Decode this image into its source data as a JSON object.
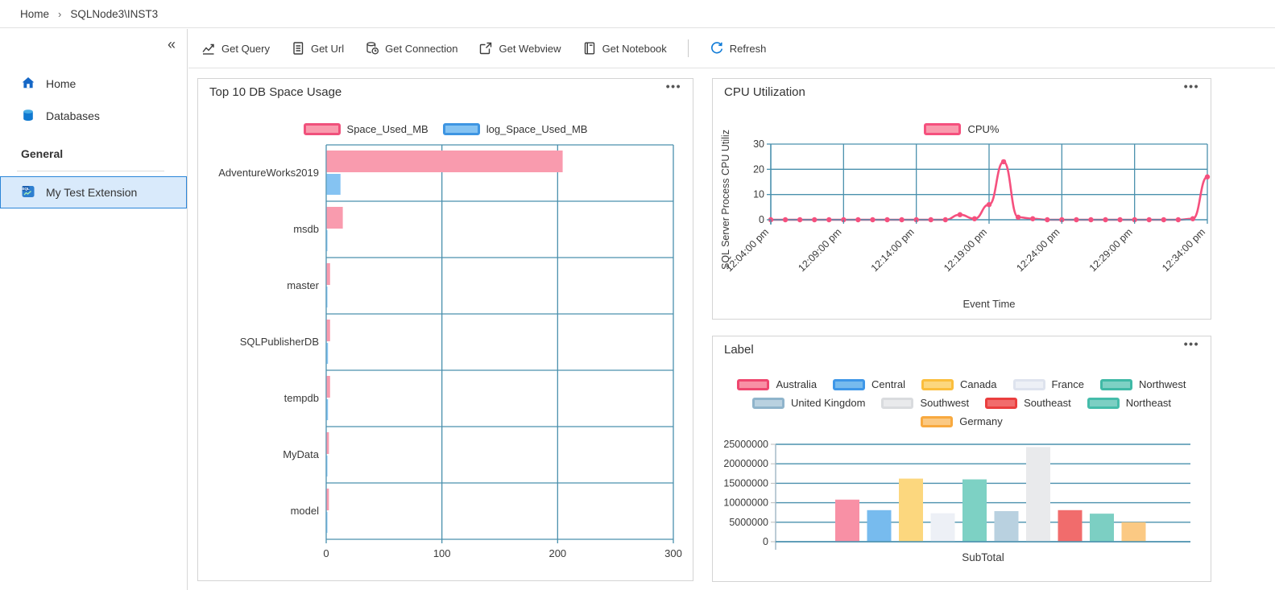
{
  "glyphs": {
    "ellipsis": "•••",
    "collapse": "«",
    "breadcrumb_separator": "›"
  },
  "breadcrumb": {
    "items": [
      "Home",
      "SQLNode3\\INST3"
    ]
  },
  "sidebar": {
    "items": [
      {
        "label": "Home",
        "icon": "home-icon"
      },
      {
        "label": "Databases",
        "icon": "database-icon"
      }
    ],
    "section": {
      "title": "General",
      "items": [
        {
          "label": "My Test Extension",
          "icon": "sql-extension-icon",
          "selected": true
        }
      ]
    }
  },
  "toolbar": {
    "actions": [
      {
        "label": "Get Query",
        "icon": "line-chart-icon"
      },
      {
        "label": "Get Url",
        "icon": "document-icon"
      },
      {
        "label": "Get Connection",
        "icon": "database-clock-icon"
      },
      {
        "label": "Get Webview",
        "icon": "external-window-icon"
      },
      {
        "label": "Get Notebook",
        "icon": "notebook-icon"
      }
    ],
    "refresh_label": "Refresh"
  },
  "widgets": [
    {
      "title": "Top 10 DB Space Usage"
    },
    {
      "title": "CPU Utilization"
    },
    {
      "title": "Label"
    }
  ],
  "chart_data": [
    {
      "type": "bar",
      "orientation": "horizontal",
      "title": "Top 10 DB Space Usage",
      "categories": [
        "AdventureWorks2019",
        "msdb",
        "master",
        "SQLPublisherDB",
        "tempdb",
        "MyData",
        "model"
      ],
      "series": [
        {
          "name": "Space_Used_MB",
          "fill": "#f99bae",
          "stroke": "#f0517c",
          "values": [
            204,
            14,
            3,
            3,
            3,
            2,
            2
          ]
        },
        {
          "name": "log_Space_Used_MB",
          "fill": "#85c3f2",
          "stroke": "#3e95e2",
          "values": [
            12,
            0.5,
            0.5,
            1.2,
            1.2,
            0.5,
            0.5
          ]
        }
      ],
      "xlim": [
        0,
        300
      ],
      "xticks": [
        0,
        100,
        200,
        300
      ],
      "grid": true,
      "legend_position": "top",
      "axis_color": "#4a90ad"
    },
    {
      "type": "line",
      "title": "CPU Utilization",
      "xlabel": "Event Time",
      "ylabel": "SQL Server Process CPU Utiliz",
      "ylim": [
        0,
        30
      ],
      "yticks": [
        0,
        10,
        20,
        30
      ],
      "xtick_labels": [
        "12:04:00 pm",
        "12:09:00 pm",
        "12:14:00 pm",
        "12:19:00 pm",
        "12:24:00 pm",
        "12:29:00 pm",
        "12:34:00 pm"
      ],
      "x": [
        "12:04:00 pm",
        "12:05:00 pm",
        "12:06:00 pm",
        "12:07:00 pm",
        "12:08:00 pm",
        "12:09:00 pm",
        "12:10:00 pm",
        "12:11:00 pm",
        "12:12:00 pm",
        "12:13:00 pm",
        "12:14:00 pm",
        "12:15:00 pm",
        "12:16:00 pm",
        "12:17:00 pm",
        "12:18:00 pm",
        "12:19:00 pm",
        "12:20:00 pm",
        "12:21:00 pm",
        "12:22:00 pm",
        "12:23:00 pm",
        "12:24:00 pm",
        "12:25:00 pm",
        "12:26:00 pm",
        "12:27:00 pm",
        "12:28:00 pm",
        "12:29:00 pm",
        "12:30:00 pm",
        "12:31:00 pm",
        "12:32:00 pm",
        "12:33:00 pm",
        "12:34:00 pm"
      ],
      "series": [
        {
          "name": "CPU%",
          "color": "#f5507e",
          "swatch_fill": "#f99bae",
          "values": [
            0,
            0,
            0,
            0,
            0,
            0,
            0,
            0,
            0,
            0,
            0,
            0,
            0,
            2,
            0.4,
            6,
            23,
            1,
            0.4,
            0,
            0,
            0,
            0,
            0,
            0,
            0,
            0,
            0,
            0,
            0.4,
            17
          ]
        }
      ],
      "grid": true,
      "legend_position": "top",
      "axis_color": "#4a90ad"
    },
    {
      "type": "bar",
      "orientation": "vertical",
      "title": "Label",
      "xlabel": "SubTotal",
      "ylim": [
        0,
        25000000
      ],
      "yticks": [
        0,
        5000000,
        10000000,
        15000000,
        20000000,
        25000000
      ],
      "series": [
        {
          "name": "Australia",
          "fill": "#f890a5",
          "stroke": "#ef476f",
          "value": 10800000
        },
        {
          "name": "Central",
          "fill": "#77bbee",
          "stroke": "#3e97e8",
          "value": 8100000
        },
        {
          "name": "Canada",
          "fill": "#fcd77e",
          "stroke": "#fbbe3c",
          "value": 16200000
        },
        {
          "name": "France",
          "fill": "#edf0f6",
          "stroke": "#dee3ee",
          "value": 7300000
        },
        {
          "name": "Northwest",
          "fill": "#7dd1c4",
          "stroke": "#3fb9a6",
          "value": 16000000
        },
        {
          "name": "United Kingdom",
          "fill": "#b9d1e0",
          "stroke": "#8fb4cb",
          "value": 7850000
        },
        {
          "name": "Southwest",
          "fill": "#e9eaec",
          "stroke": "#d9dbde",
          "value": 24300000
        },
        {
          "name": "Southeast",
          "fill": "#f16c6c",
          "stroke": "#ea3e3e",
          "value": 8100000
        },
        {
          "name": "Northeast",
          "fill": "#7ccfc3",
          "stroke": "#45bcaa",
          "value": 7200000
        },
        {
          "name": "Germany",
          "fill": "#fbc983",
          "stroke": "#f8a93f",
          "value": 5000000
        }
      ],
      "grid": true,
      "legend_position": "top",
      "axis_color": "#4a90ad"
    }
  ]
}
